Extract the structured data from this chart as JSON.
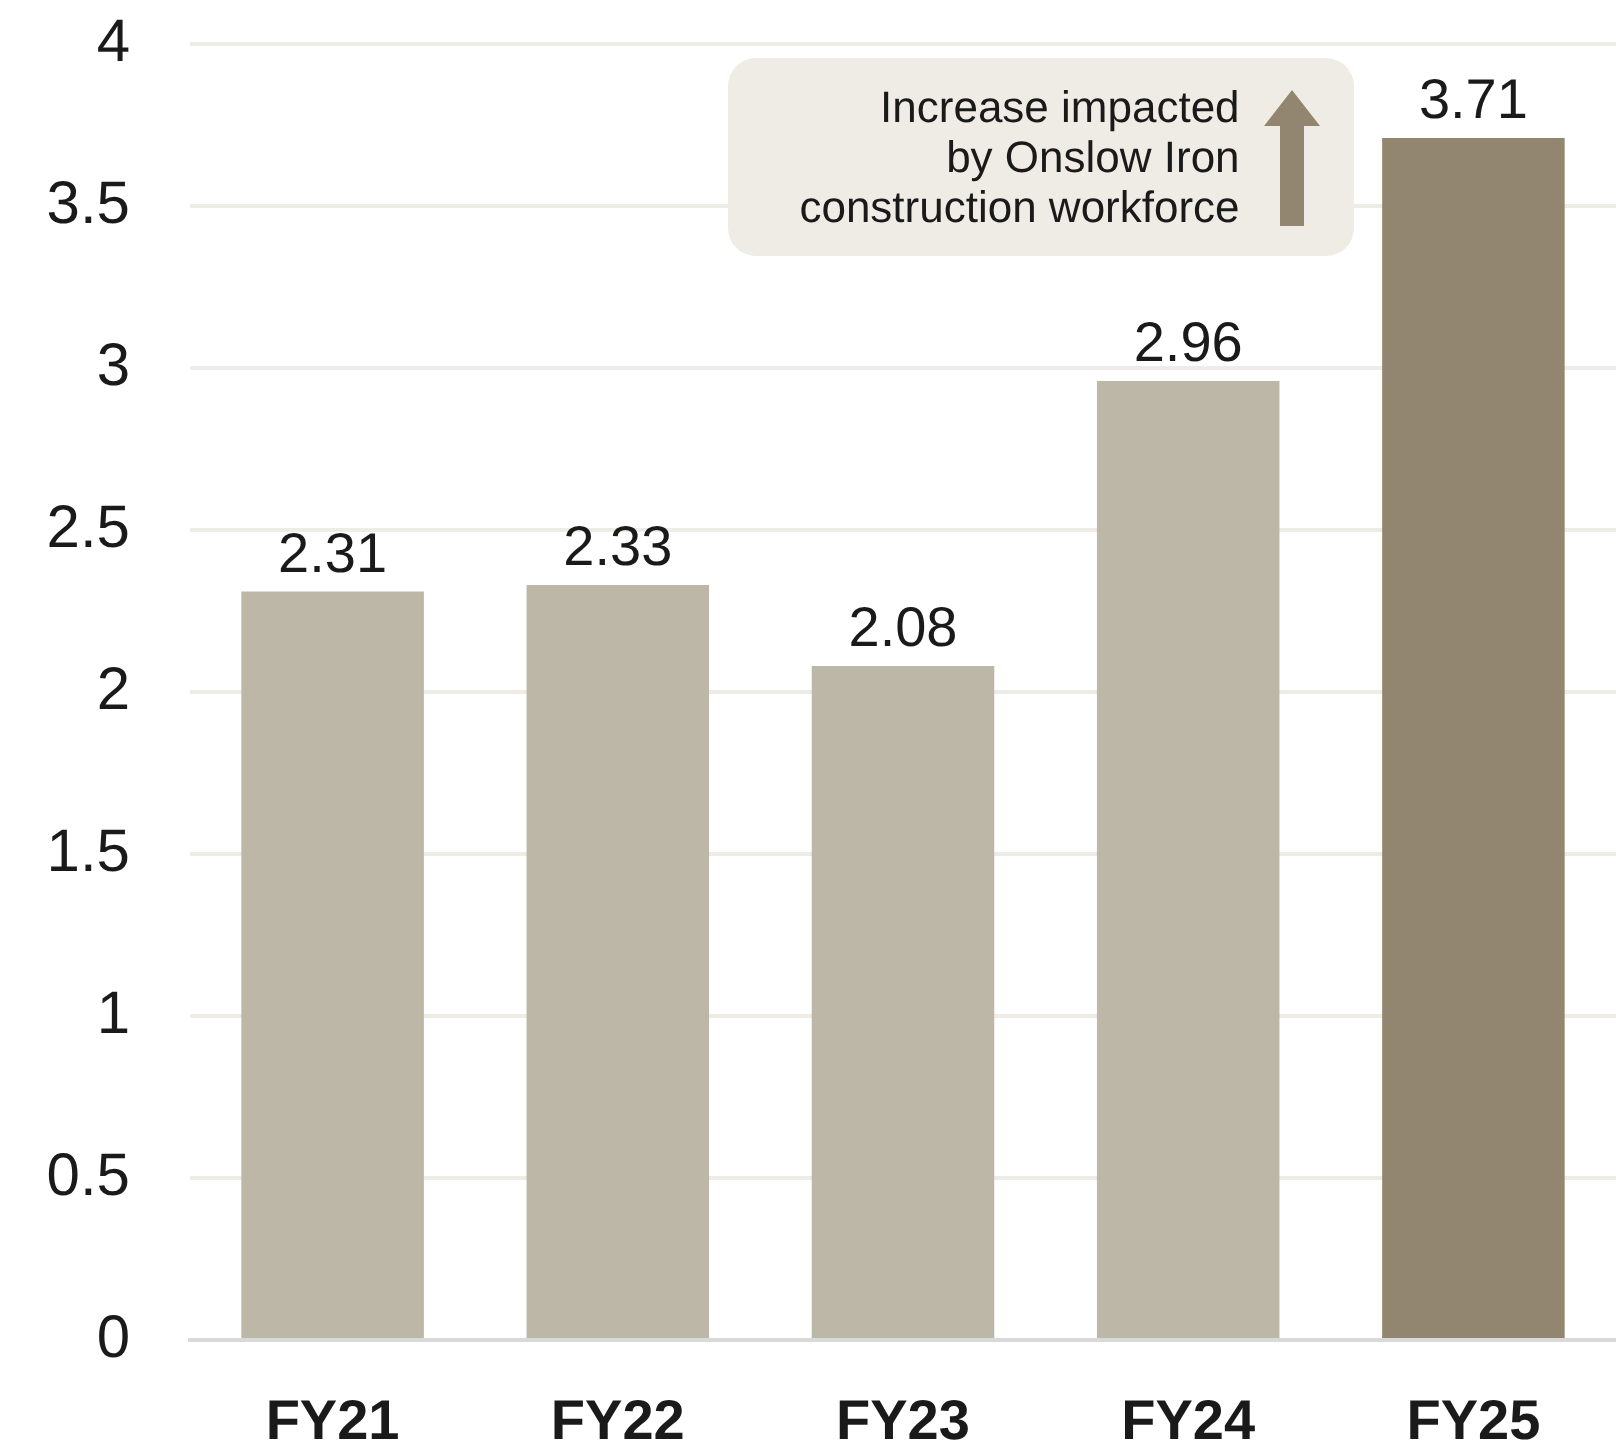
{
  "chart_data": {
    "type": "bar",
    "categories": [
      "FY21",
      "FY22",
      "FY23",
      "FY24",
      "FY25"
    ],
    "values": [
      2.31,
      2.33,
      2.08,
      2.96,
      3.71
    ],
    "colors": [
      "#bdb7a7",
      "#bdb7a7",
      "#bdb7a7",
      "#bdb7a7",
      "#928670"
    ],
    "ylim": [
      0,
      4
    ],
    "yticks": [
      0,
      0.5,
      1,
      1.5,
      2,
      2.5,
      3,
      3.5,
      4
    ],
    "grid": "y",
    "data_labels": true,
    "annotations": [
      "Increase impacted by Onslow Iron construction workforce"
    ]
  }
}
